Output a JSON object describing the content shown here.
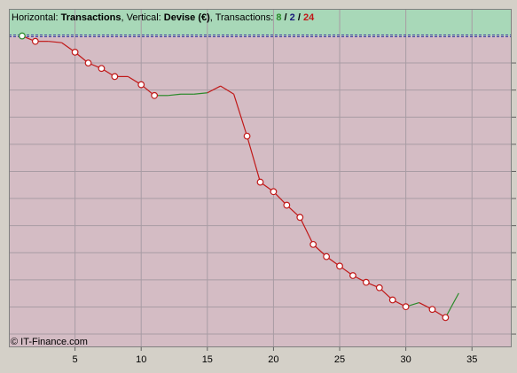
{
  "header": {
    "horizontal_label": "Horizontal: ",
    "horizontal_value": "Transactions",
    "vertical_label": ", Vertical: ",
    "vertical_value": "Devise (€)",
    "transactions_label": ", Transactions: ",
    "count_win": "8",
    "sep1": " / ",
    "count_loss": "2",
    "sep2": " / ",
    "count_total": "24"
  },
  "watermark": "© IT-Finance.com",
  "colors": {
    "profit_zone": "#a8d8b8",
    "loss_zone": "#d4bcc4",
    "win": "#2a8a2a",
    "loss": "#c01818",
    "grid": "#a89ca4",
    "baseline": "#3a3aa0",
    "frame": "#808080"
  },
  "chart_data": {
    "type": "line",
    "title": "",
    "xlabel": "",
    "ylabel": "",
    "xlim": [
      0,
      38
    ],
    "ylim": [
      -115,
      10
    ],
    "grid": true,
    "x_ticks": [
      5,
      10,
      15,
      20,
      25,
      30,
      35
    ],
    "baseline_y": 0,
    "series": [
      {
        "x": [
          1,
          2,
          3,
          4,
          5,
          6,
          7,
          8,
          9,
          10,
          11,
          12,
          13,
          14,
          15,
          16,
          17,
          18,
          19,
          20,
          21,
          22,
          23,
          24,
          25,
          26,
          27,
          28,
          29,
          30,
          31,
          32,
          33,
          34
        ],
        "y": [
          0,
          -2,
          -2,
          -2.5,
          -6,
          -10,
          -12,
          -15,
          -15,
          -18,
          -22,
          -22,
          -21.5,
          -21.5,
          -21,
          -18.5,
          -21.5,
          -37,
          -54,
          -57.5,
          -62.5,
          -67,
          -77,
          -81.5,
          -85,
          -88.5,
          -91,
          -93,
          -97.5,
          -100,
          -98.5,
          -101,
          -104,
          -95
        ],
        "markers": [
          1,
          2,
          5,
          6,
          7,
          8,
          10,
          11,
          18,
          19,
          20,
          21,
          22,
          23,
          24,
          25,
          26,
          27,
          28,
          29,
          30,
          32,
          33
        ],
        "win_markers": [
          1
        ],
        "green_segments": [
          [
            11,
            15
          ],
          [
            30,
            31
          ],
          [
            33,
            34
          ]
        ]
      }
    ]
  }
}
